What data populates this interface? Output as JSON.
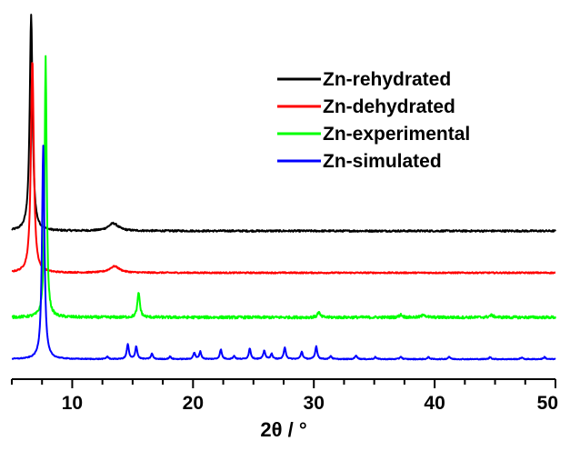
{
  "chart_data": {
    "type": "line",
    "title": "",
    "xlabel": "2θ / °",
    "ylabel": "",
    "xlim": [
      5,
      50
    ],
    "xticks": [
      10,
      20,
      30,
      40,
      50
    ],
    "xtick_labels": [
      "10",
      "20",
      "30",
      "40",
      "50"
    ],
    "grid": false,
    "legend_position": "top-right",
    "series": [
      {
        "name": "Zn-rehydrated",
        "color": "#000000",
        "baseline": 0.0,
        "noise": 0.008,
        "peaks": [
          [
            6.6,
            1.0,
            0.14
          ],
          [
            13.4,
            0.035,
            0.5
          ]
        ]
      },
      {
        "name": "Zn-dehydrated",
        "color": "#ff0000",
        "baseline": 0.0,
        "noise": 0.006,
        "peaks": [
          [
            6.7,
            1.0,
            0.14
          ],
          [
            13.5,
            0.03,
            0.5
          ]
        ]
      },
      {
        "name": "Zn-experimental",
        "color": "#00ff00",
        "baseline": 0.0,
        "noise": 0.01,
        "peaks": [
          [
            7.8,
            1.0,
            0.1
          ],
          [
            15.5,
            0.095,
            0.12
          ],
          [
            30.4,
            0.02,
            0.12
          ],
          [
            37.2,
            0.01,
            0.15
          ],
          [
            39.1,
            0.012,
            0.15
          ],
          [
            44.7,
            0.008,
            0.2
          ]
        ]
      },
      {
        "name": "Zn-simulated",
        "color": "#0000ff",
        "baseline": 0.0,
        "noise": 0.004,
        "peaks": [
          [
            7.6,
            1.0,
            0.12
          ],
          [
            12.9,
            0.012,
            0.1
          ],
          [
            14.6,
            0.07,
            0.1
          ],
          [
            15.3,
            0.06,
            0.1
          ],
          [
            16.6,
            0.025,
            0.1
          ],
          [
            18.1,
            0.012,
            0.1
          ],
          [
            20.1,
            0.03,
            0.1
          ],
          [
            20.6,
            0.035,
            0.1
          ],
          [
            22.3,
            0.045,
            0.1
          ],
          [
            23.4,
            0.015,
            0.1
          ],
          [
            24.7,
            0.05,
            0.1
          ],
          [
            25.9,
            0.04,
            0.1
          ],
          [
            26.5,
            0.025,
            0.1
          ],
          [
            27.6,
            0.055,
            0.1
          ],
          [
            29.0,
            0.035,
            0.1
          ],
          [
            30.2,
            0.06,
            0.1
          ],
          [
            31.4,
            0.015,
            0.1
          ],
          [
            33.5,
            0.018,
            0.1
          ],
          [
            35.1,
            0.01,
            0.1
          ],
          [
            37.2,
            0.012,
            0.1
          ],
          [
            39.5,
            0.01,
            0.1
          ],
          [
            41.2,
            0.012,
            0.1
          ],
          [
            44.6,
            0.01,
            0.1
          ],
          [
            47.2,
            0.008,
            0.1
          ],
          [
            49.1,
            0.01,
            0.1
          ]
        ]
      }
    ]
  }
}
